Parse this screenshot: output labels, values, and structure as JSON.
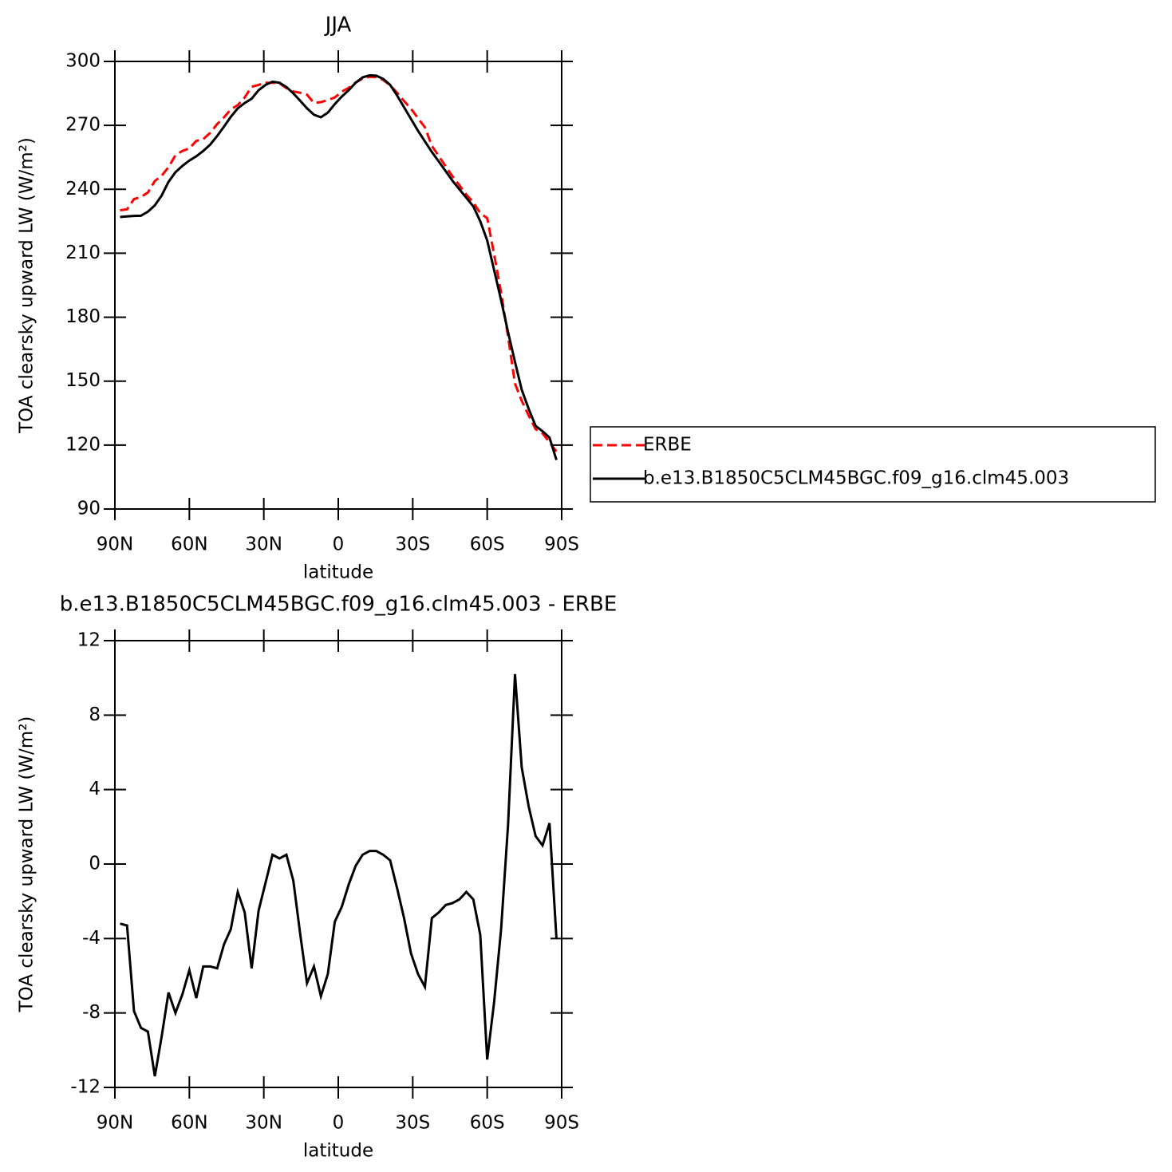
{
  "chart_data": [
    {
      "type": "line",
      "title": "JJA",
      "x_label": "latitude",
      "y_label": "TOA clearsky upward LW (W/m²)",
      "x": [
        87.9,
        85.1,
        82.3,
        79.5,
        76.7,
        73.9,
        71.2,
        68.4,
        65.6,
        62.8,
        60.0,
        57.2,
        54.4,
        51.6,
        48.8,
        46.0,
        43.3,
        40.5,
        37.7,
        34.9,
        32.1,
        29.3,
        26.5,
        23.7,
        20.9,
        18.1,
        15.3,
        12.6,
        9.8,
        7.0,
        4.2,
        1.4,
        -1.4,
        -4.2,
        -7.0,
        -9.8,
        -12.6,
        -15.3,
        -18.1,
        -20.9,
        -23.7,
        -26.5,
        -29.3,
        -32.1,
        -34.9,
        -37.7,
        -40.5,
        -43.3,
        -46.0,
        -48.8,
        -51.6,
        -54.4,
        -57.2,
        -60.0,
        -62.8,
        -65.6,
        -68.4,
        -71.2,
        -73.9,
        -76.7,
        -79.5,
        -82.3,
        -85.1,
        -87.9
      ],
      "series": [
        {
          "name": "ERBE",
          "color": "#ff0000",
          "dash": true,
          "values": [
            230.2,
            230.6,
            235.4,
            236.4,
            238.5,
            243.9,
            246.3,
            250.4,
            256,
            258,
            259.2,
            262.7,
            263.5,
            266.5,
            270.6,
            273.8,
            277.5,
            279.5,
            283.1,
            288.1,
            289,
            290,
            290,
            289.7,
            287.5,
            285.9,
            285.3,
            284.4,
            280.5,
            280.9,
            281.9,
            283.1,
            285.8,
            287.6,
            290.1,
            292,
            292.8,
            292.6,
            291.3,
            288.8,
            285.3,
            281.4,
            277.8,
            273.4,
            269.1,
            260.4,
            255.6,
            250.7,
            246.1,
            241.9,
            237.5,
            233.9,
            228.8,
            226.5,
            209.4,
            191.5,
            170.9,
            148.8,
            140.8,
            133.9,
            127.5,
            125.5,
            121.3,
            117
          ]
        },
        {
          "name": "b.e13.B1850C5CLM45BGC.f09_g16.clm45.003",
          "color": "#000000",
          "dash": false,
          "values": [
            227,
            227.3,
            227.5,
            227.6,
            229.5,
            232.5,
            237,
            243.5,
            248,
            251,
            253.5,
            255.5,
            258,
            261,
            265,
            269.5,
            274,
            278,
            280.5,
            282.5,
            286.5,
            289,
            290.5,
            290,
            288,
            285,
            281.5,
            278,
            275,
            273.8,
            276,
            280,
            283.5,
            286.5,
            290,
            292.5,
            293.5,
            293.3,
            291.8,
            289,
            284,
            278.5,
            273,
            267.5,
            262.5,
            257.5,
            253,
            248.5,
            244,
            240,
            236,
            232,
            225,
            216,
            202,
            188,
            173,
            159,
            146,
            137,
            129,
            126.5,
            123.5,
            113
          ]
        }
      ],
      "xlim": [
        90,
        -90
      ],
      "xticks": [
        {
          "value": 90,
          "label": "90N"
        },
        {
          "value": 60,
          "label": "60N"
        },
        {
          "value": 30,
          "label": "30N"
        },
        0,
        {
          "value": -30,
          "label": "30S"
        },
        {
          "value": -60,
          "label": "60S"
        },
        {
          "value": -90,
          "label": "90S"
        }
      ],
      "ylim": [
        90,
        300
      ],
      "yticks": [
        90,
        120,
        150,
        180,
        210,
        240,
        270,
        300
      ],
      "legend": "right"
    },
    {
      "type": "line",
      "title": "b.e13.B1850C5CLM45BGC.f09_g16.clm45.003 - ERBE",
      "x_label": "latitude",
      "y_label": "TOA clearsky upward LW (W/m²)",
      "x": [
        87.9,
        85.1,
        82.3,
        79.5,
        76.7,
        73.9,
        71.2,
        68.4,
        65.6,
        62.8,
        60.0,
        57.2,
        54.4,
        51.6,
        48.8,
        46.0,
        43.3,
        40.5,
        37.7,
        34.9,
        32.1,
        29.3,
        26.5,
        23.7,
        20.9,
        18.1,
        15.3,
        12.6,
        9.8,
        7.0,
        4.2,
        1.4,
        -1.4,
        -4.2,
        -7.0,
        -9.8,
        -12.6,
        -15.3,
        -18.1,
        -20.9,
        -23.7,
        -26.5,
        -29.3,
        -32.1,
        -34.9,
        -37.7,
        -40.5,
        -43.3,
        -46.0,
        -48.8,
        -51.6,
        -54.4,
        -57.2,
        -60.0,
        -62.8,
        -65.6,
        -68.4,
        -71.2,
        -73.9,
        -76.7,
        -79.5,
        -82.3,
        -85.1,
        -87.9
      ],
      "series": [
        {
          "color": "#000000",
          "dash": false,
          "values": [
            -3.2,
            -3.3,
            -7.9,
            -8.8,
            -9.0,
            -11.4,
            -9.3,
            -6.9,
            -8.0,
            -7.0,
            -5.7,
            -7.2,
            -5.5,
            -5.5,
            -5.6,
            -4.3,
            -3.5,
            -1.5,
            -2.6,
            -5.6,
            -2.5,
            -1.0,
            0.5,
            0.3,
            0.5,
            -0.9,
            -3.8,
            -6.4,
            -5.5,
            -7.1,
            -5.9,
            -3.1,
            -2.3,
            -1.1,
            -0.1,
            0.5,
            0.7,
            0.7,
            0.5,
            0.2,
            -1.3,
            -2.9,
            -4.8,
            -5.9,
            -6.6,
            -2.9,
            -2.6,
            -2.2,
            -2.1,
            -1.9,
            -1.5,
            -1.9,
            -3.8,
            -10.5,
            -7.4,
            -3.5,
            2.1,
            10.2,
            5.2,
            3.1,
            1.5,
            1.0,
            2.2,
            -4.0
          ]
        }
      ],
      "xlim": [
        90,
        -90
      ],
      "xticks": [
        {
          "value": 90,
          "label": "90N"
        },
        {
          "value": 60,
          "label": "60N"
        },
        {
          "value": 30,
          "label": "30N"
        },
        0,
        {
          "value": -30,
          "label": "30S"
        },
        {
          "value": -60,
          "label": "60S"
        },
        {
          "value": -90,
          "label": "90S"
        }
      ],
      "ylim": [
        -12,
        12
      ],
      "yticks": [
        -12,
        -8,
        -4,
        0,
        4,
        8,
        12
      ]
    }
  ]
}
